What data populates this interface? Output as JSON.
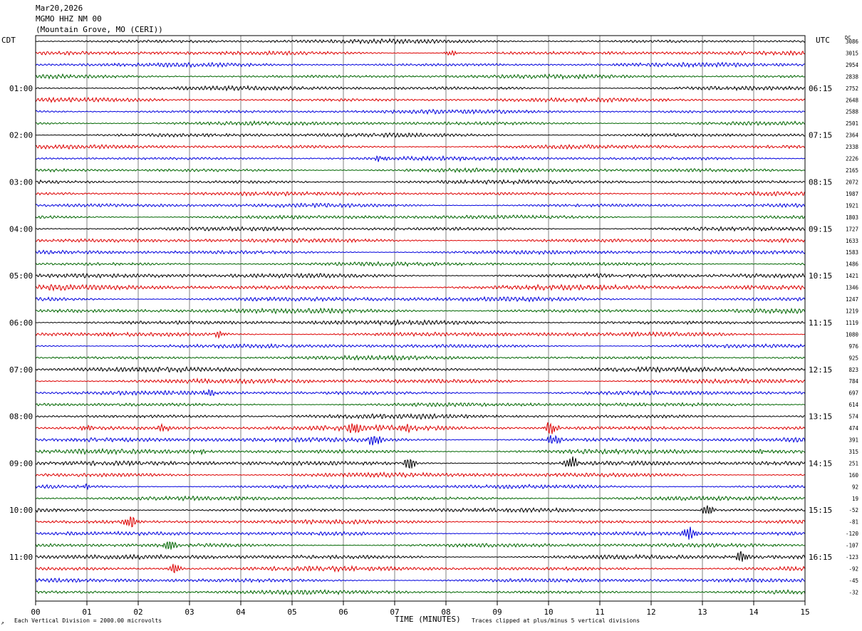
{
  "header": {
    "date": "Mar20,2026",
    "station": "MGMO HHZ NM 00",
    "location": "(Mountain Grove, MO (CERI))"
  },
  "left_axis_label": "CDT",
  "right_axis_label": "UTC",
  "dc_label": "DC",
  "footer": {
    "scale": "Each Vertical Division = 2000.00 microvolts",
    "xlabel": "TIME (MINUTES)",
    "clip": "Traces clipped at plus/minus 5 vertical divisions",
    "corner_mark": "↗"
  },
  "colors": {
    "trace_cycle": [
      "#000000",
      "#dd0000",
      "#0000dd",
      "#006600"
    ],
    "grid": "#808080",
    "frame": "#000000"
  },
  "chart_data": {
    "type": "line",
    "description_type": "helicorder",
    "x_range": [
      0,
      15
    ],
    "x_ticks": [
      "00",
      "01",
      "02",
      "03",
      "04",
      "05",
      "06",
      "07",
      "08",
      "09",
      "10",
      "11",
      "12",
      "13",
      "14",
      "15"
    ],
    "left_ticks": [
      {
        "row": 4,
        "label": "01:00"
      },
      {
        "row": 8,
        "label": "02:00"
      },
      {
        "row": 12,
        "label": "03:00"
      },
      {
        "row": 16,
        "label": "04:00"
      },
      {
        "row": 20,
        "label": "05:00"
      },
      {
        "row": 24,
        "label": "06:00"
      },
      {
        "row": 28,
        "label": "07:00"
      },
      {
        "row": 32,
        "label": "08:00"
      },
      {
        "row": 36,
        "label": "09:00"
      },
      {
        "row": 40,
        "label": "10:00"
      },
      {
        "row": 44,
        "label": "11:00"
      }
    ],
    "right_ticks": [
      {
        "row": 4,
        "label": "06:15"
      },
      {
        "row": 8,
        "label": "07:15"
      },
      {
        "row": 12,
        "label": "08:15"
      },
      {
        "row": 16,
        "label": "09:15"
      },
      {
        "row": 20,
        "label": "10:15"
      },
      {
        "row": 24,
        "label": "11:15"
      },
      {
        "row": 28,
        "label": "12:15"
      },
      {
        "row": 32,
        "label": "13:15"
      },
      {
        "row": 36,
        "label": "14:15"
      },
      {
        "row": 40,
        "label": "15:15"
      },
      {
        "row": 44,
        "label": "16:15"
      }
    ],
    "dc_offsets": [
      "3086",
      "3015",
      "2954",
      "2838",
      "2752",
      "2648",
      "2588",
      "2501",
      "2364",
      "2338",
      "2226",
      "2165",
      "2072",
      "1987",
      "1921",
      "1803",
      "1727",
      "1633",
      "1583",
      "1486",
      "1421",
      "1346",
      "1247",
      "1219",
      "1119",
      "1080",
      "976",
      "925",
      "823",
      "784",
      "697",
      "614",
      "574",
      "474",
      "391",
      "315",
      "251",
      "160",
      "92",
      "19",
      "-52",
      "-81",
      "-120",
      "-107",
      "-123",
      "-92",
      "-45",
      "-32"
    ],
    "trace_amplitude": [
      3,
      3,
      3,
      3,
      3,
      3,
      3,
      3,
      3,
      3,
      3,
      3,
      3,
      3,
      3,
      3,
      3,
      3,
      3,
      3,
      3.5,
      4,
      3.5,
      3.5,
      3.5,
      3.5,
      3,
      3,
      3.5,
      3.5,
      3,
      3,
      3.5,
      4,
      3.5,
      3.5,
      3.5,
      3.5,
      3,
      3,
      3,
      3,
      3,
      3,
      3.5,
      3.5,
      3,
      3
    ],
    "events": [
      {
        "row": 1,
        "minute": 8.1,
        "amp": 3
      },
      {
        "row": 10,
        "minute": 6.7,
        "amp": 3
      },
      {
        "row": 25,
        "minute": 3.6,
        "amp": 4
      },
      {
        "row": 30,
        "minute": 3.4,
        "amp": 4
      },
      {
        "row": 33,
        "minute": 1.0,
        "amp": 3
      },
      {
        "row": 33,
        "minute": 2.5,
        "amp": 4
      },
      {
        "row": 33,
        "minute": 6.2,
        "amp": 7
      },
      {
        "row": 33,
        "minute": 7.2,
        "amp": 4
      },
      {
        "row": 33,
        "minute": 10.05,
        "amp": 8
      },
      {
        "row": 34,
        "minute": 6.6,
        "amp": 7
      },
      {
        "row": 34,
        "minute": 10.1,
        "amp": 7
      },
      {
        "row": 35,
        "minute": 3.2,
        "amp": 3
      },
      {
        "row": 35,
        "minute": 14.1,
        "amp": 3
      },
      {
        "row": 36,
        "minute": 7.3,
        "amp": 7
      },
      {
        "row": 36,
        "minute": 10.45,
        "amp": 7
      },
      {
        "row": 38,
        "minute": 1.0,
        "amp": 3
      },
      {
        "row": 40,
        "minute": 13.1,
        "amp": 6
      },
      {
        "row": 41,
        "minute": 1.85,
        "amp": 7
      },
      {
        "row": 42,
        "minute": 12.75,
        "amp": 10
      },
      {
        "row": 43,
        "minute": 2.6,
        "amp": 7
      },
      {
        "row": 44,
        "minute": 13.75,
        "amp": 7
      },
      {
        "row": 45,
        "minute": 2.7,
        "amp": 6
      }
    ]
  }
}
